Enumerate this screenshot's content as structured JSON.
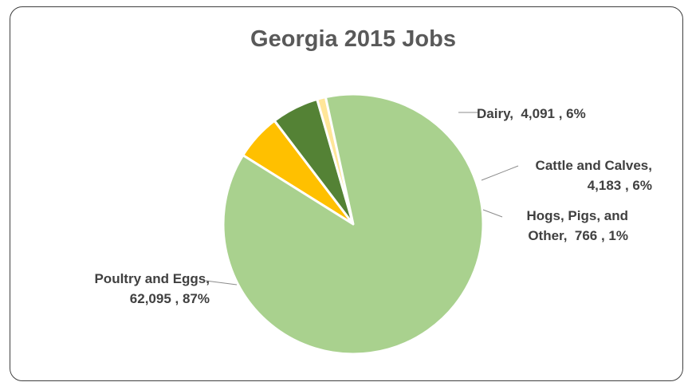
{
  "chart_data": {
    "type": "pie",
    "title": "Georgia 2015 Jobs",
    "slices": [
      {
        "name": "Dairy",
        "value": 4091,
        "percent": "6%",
        "label_lines": [
          "Dairy,  4,091 , 6%"
        ],
        "color": "#FFC000"
      },
      {
        "name": "Cattle and Calves",
        "value": 4183,
        "percent": "6%",
        "label_lines": [
          "Cattle and Calves,",
          "4,183 , 6%"
        ],
        "color": "#548235"
      },
      {
        "name": "Hogs, Pigs, and Other",
        "value": 766,
        "percent": "1%",
        "label_lines": [
          "Hogs, Pigs, and",
          "Other,  766 , 1%"
        ],
        "color": "#FFE699"
      },
      {
        "name": "Poultry and Eggs",
        "value": 62095,
        "percent": "87%",
        "label_lines": [
          "Poultry and Eggs,",
          "62,095 , 87%"
        ],
        "color": "#A9D18E"
      }
    ],
    "legend": "none",
    "data_labels": "outside-with-leader-lines"
  }
}
